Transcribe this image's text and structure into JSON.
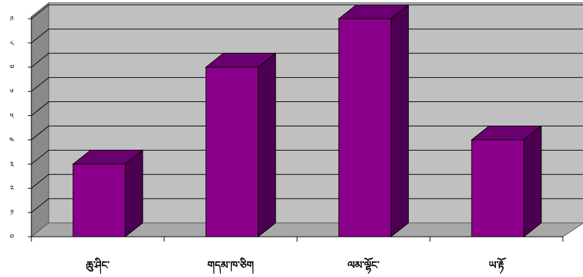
{
  "chart_data": {
    "type": "bar",
    "style": "3d-column",
    "categories": [
      "ཆུ་ཤིང་",
      "གདམ་ཁ་ཅིག",
      "ལམ་ལྷོང་",
      "ཡ་རྟོ"
    ],
    "values": [
      3,
      7,
      9,
      4
    ],
    "y_tick_labels": [
      "༠",
      "༡",
      "༢",
      "༣",
      "༤",
      "༥",
      "༦",
      "༧",
      "༨",
      "༩"
    ],
    "ylim": [
      0,
      9
    ],
    "grid": true,
    "legend": "none",
    "title": "",
    "xlabel": "",
    "ylabel": "",
    "colors": {
      "bar_front": "#8b008b",
      "bar_top": "#6a0070",
      "bar_side": "#4d0052",
      "back_wall": "#c0c0c0",
      "side_wall": "#8a8a8a",
      "floor": "#a8a8a8",
      "grid_line": "#000000"
    }
  }
}
